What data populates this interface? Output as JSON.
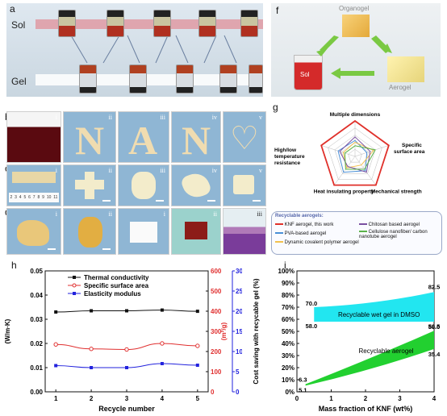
{
  "panels": {
    "a": {
      "letter": "a",
      "sol_label": "Sol",
      "gel_label": "Gel"
    },
    "b": {
      "letter": "b",
      "sub": [
        "i",
        "ii",
        "iii",
        "iv",
        "v"
      ]
    },
    "c": {
      "letter": "c",
      "sub": [
        "i",
        "ii",
        "iii",
        "iv",
        "v"
      ],
      "ruler_numbers": [
        "2",
        "3",
        "4",
        "5",
        "6",
        "7",
        "8",
        "9",
        "10",
        "11"
      ]
    },
    "d": {
      "letter": "d",
      "sub": [
        "i",
        "ii"
      ]
    },
    "e": {
      "letter": "e",
      "sub": [
        "i",
        "ii",
        "iii"
      ]
    },
    "f": {
      "letter": "f",
      "organogel": "Organogel",
      "sol": "Sol",
      "aerogel": "Aerogel"
    },
    "g": {
      "letter": "g",
      "axes": [
        "Multiple dimensions",
        "Specific surface area",
        "Mechanical strength",
        "Heat insulating property",
        "High/low temperature resistance"
      ],
      "legend_title": "Recyclable aerogels:",
      "legend": [
        {
          "label": "KNF aerogel, this work",
          "color": "#e0302a"
        },
        {
          "label": "PVA-based aerogel",
          "color": "#4a8fd6"
        },
        {
          "label": "Dynamic covalent polymer aerogel",
          "color": "#f2c14e"
        },
        {
          "label": "Chitosan based aerogel",
          "color": "#7a4fa0"
        },
        {
          "label": "Cellulose nanofiber/ carbon nanotube aerogel",
          "color": "#5bb34a"
        }
      ]
    },
    "h": {
      "letter": "h"
    },
    "i": {
      "letter": "i"
    }
  },
  "chart_data": [
    {
      "type": "line",
      "panel": "h",
      "x": [
        1,
        2,
        3,
        4,
        5
      ],
      "xlabel": "Recycle number",
      "series": [
        {
          "name": "Thermal conductivity",
          "values": [
            0.033,
            0.0335,
            0.0335,
            0.0338,
            0.0333
          ],
          "axis": "left",
          "color": "#111111"
        },
        {
          "name": "Specific surface area",
          "values": [
            235,
            213,
            210,
            240,
            228
          ],
          "axis": "right1",
          "color": "#e03030"
        },
        {
          "name": "Elasticity modulus",
          "values": [
            6.5,
            6.0,
            6.0,
            7.0,
            6.6
          ],
          "axis": "right2",
          "color": "#2222dd"
        }
      ],
      "axes": {
        "left": {
          "label": "(W/m·K)",
          "ylim": [
            0.0,
            0.05
          ],
          "ticks": [
            "0.00",
            "0.01",
            "0.02",
            "0.03",
            "0.04",
            "0.05"
          ]
        },
        "right1": {
          "label": "(m²/g)",
          "ylim": [
            0,
            600
          ],
          "ticks": [
            "0",
            "100",
            "200",
            "300",
            "400",
            "500",
            "600"
          ],
          "color": "#e03030"
        },
        "right2": {
          "label": "(MPa)",
          "ylim": [
            0,
            30
          ],
          "ticks": [
            "0",
            "5",
            "10",
            "15",
            "20",
            "25",
            "30"
          ],
          "color": "#2222dd"
        }
      },
      "xticks": [
        "1",
        "2",
        "3",
        "4",
        "5"
      ]
    },
    {
      "type": "area",
      "panel": "i",
      "xlabel": "Mass fraction of KNF (wt%)",
      "ylabel": "Cost saving with recycable gel (%)",
      "xlim": [
        0,
        4
      ],
      "ylim": [
        0,
        100
      ],
      "xticks": [
        "0",
        "1",
        "2",
        "3",
        "4"
      ],
      "yticks": [
        "0%",
        "10%",
        "20%",
        "30%",
        "40%",
        "50%",
        "60%",
        "70%",
        "80%",
        "90%",
        "100%"
      ],
      "series": [
        {
          "name": "Recyclable wet gel in DMSO",
          "color": "#22e6f0",
          "x": [
            0.5,
            4
          ],
          "lower": [
            58.0,
            58.0
          ],
          "upper": [
            70.0,
            82.5
          ]
        },
        {
          "name": "Recyclable aerogel",
          "color": "#22d030",
          "x": [
            0.25,
            4
          ],
          "lower": [
            5.1,
            35.4
          ],
          "upper": [
            6.3,
            50.5
          ]
        }
      ],
      "annotations": [
        "70.0",
        "58.0",
        "82.5",
        "58.0",
        "50.5",
        "35.4",
        "6.3",
        "5.1"
      ]
    }
  ]
}
